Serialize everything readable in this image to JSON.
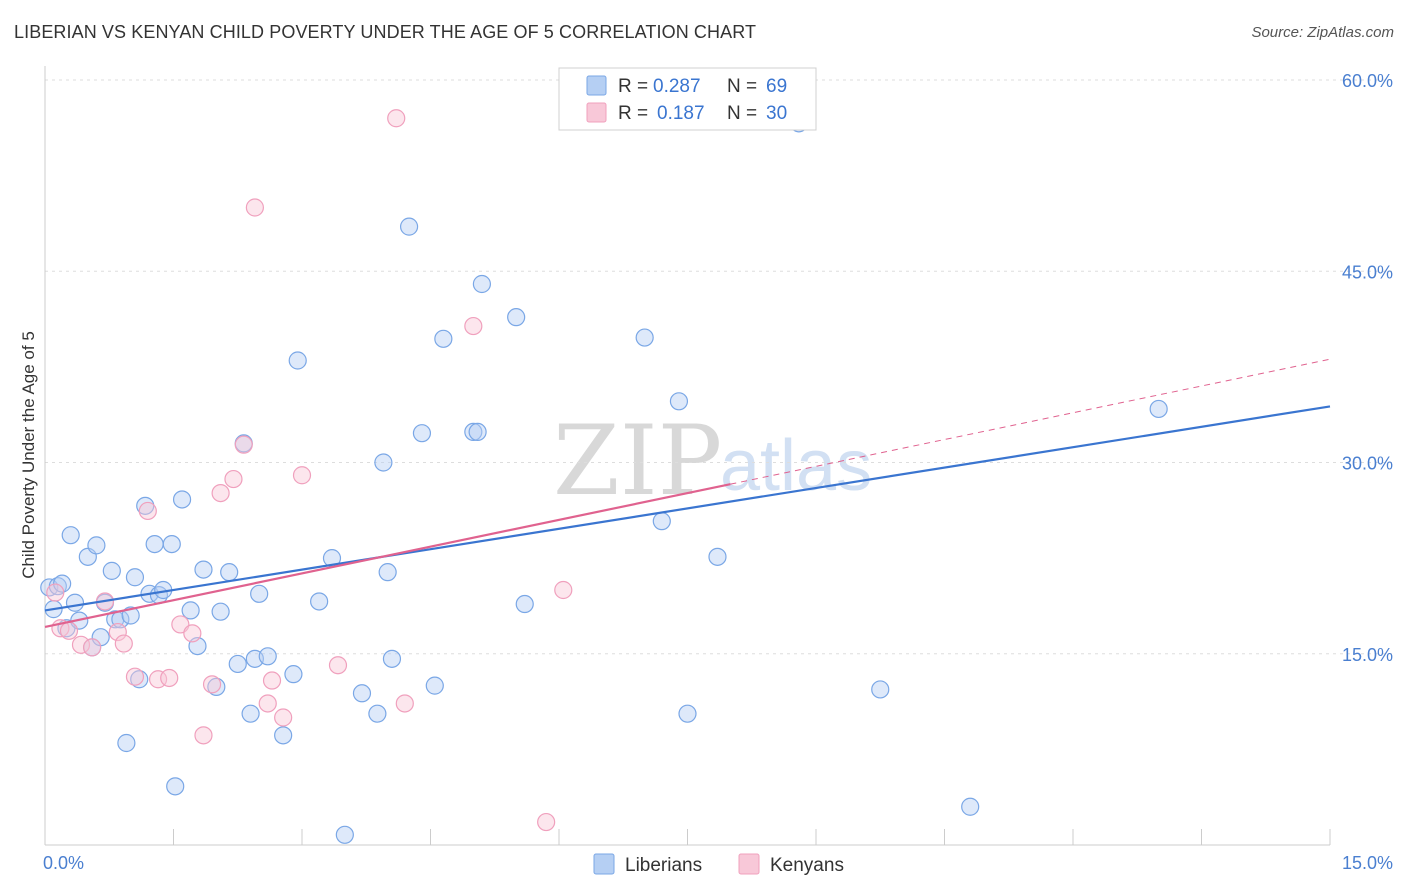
{
  "header": {
    "title": "LIBERIAN VS KENYAN CHILD POVERTY UNDER THE AGE OF 5 CORRELATION CHART",
    "source": "Source: ZipAtlas.com"
  },
  "watermark": {
    "part1": "ZIP",
    "part2": "atlas"
  },
  "legend": {
    "r_label": "R =",
    "n_label": "N =",
    "rows": [
      {
        "name": "Liberians",
        "r": "0.287",
        "n": "69"
      },
      {
        "name": "Kenyans",
        "r": "0.187",
        "n": "30"
      }
    ]
  },
  "chart_data": {
    "type": "scatter",
    "title": "LIBERIAN VS KENYAN CHILD POVERTY UNDER THE AGE OF 5 CORRELATION CHART",
    "xlabel": "",
    "ylabel": "Child Poverty Under the Age of 5",
    "xlim": [
      0,
      15
    ],
    "ylim": [
      0,
      60
    ],
    "x_tick_labels": [
      "0.0%",
      "15.0%"
    ],
    "y_ticks": [
      15,
      30,
      45,
      60
    ],
    "y_tick_labels": [
      "15.0%",
      "30.0%",
      "45.0%",
      "60.0%"
    ],
    "grid": true,
    "legend_position": "top-center",
    "colors": {
      "Liberians": "#7aa7e6",
      "Kenyans": "#f0a0bd",
      "liberians_line": "#3a75d0",
      "kenyans_line": "#e0628f"
    },
    "series": [
      {
        "name": "Liberians",
        "r": 0.287,
        "n": 69,
        "trend": {
          "x": [
            0,
            15
          ],
          "y": [
            18.4,
            34.4
          ],
          "style": "solid"
        },
        "points": [
          [
            0.05,
            20.2
          ],
          [
            0.1,
            18.5
          ],
          [
            0.15,
            20.3
          ],
          [
            0.2,
            20.5
          ],
          [
            0.25,
            17.0
          ],
          [
            0.35,
            19.0
          ],
          [
            0.3,
            24.3
          ],
          [
            0.4,
            17.6
          ],
          [
            0.5,
            22.6
          ],
          [
            0.55,
            15.5
          ],
          [
            0.6,
            23.5
          ],
          [
            0.65,
            16.3
          ],
          [
            0.7,
            19.0
          ],
          [
            0.78,
            21.5
          ],
          [
            0.82,
            17.7
          ],
          [
            0.88,
            17.7
          ],
          [
            0.95,
            8.0
          ],
          [
            1.0,
            18.0
          ],
          [
            1.05,
            21.0
          ],
          [
            1.1,
            13.0
          ],
          [
            1.17,
            26.6
          ],
          [
            1.22,
            19.7
          ],
          [
            1.28,
            23.6
          ],
          [
            1.33,
            19.6
          ],
          [
            1.38,
            20.0
          ],
          [
            1.48,
            23.6
          ],
          [
            1.52,
            4.6
          ],
          [
            1.6,
            27.1
          ],
          [
            1.7,
            18.4
          ],
          [
            1.78,
            15.6
          ],
          [
            1.85,
            21.6
          ],
          [
            2.0,
            12.4
          ],
          [
            2.05,
            18.3
          ],
          [
            2.15,
            21.4
          ],
          [
            2.25,
            14.2
          ],
          [
            2.32,
            31.5
          ],
          [
            2.4,
            10.3
          ],
          [
            2.45,
            14.6
          ],
          [
            2.5,
            19.7
          ],
          [
            2.6,
            14.8
          ],
          [
            2.78,
            8.6
          ],
          [
            2.9,
            13.4
          ],
          [
            2.95,
            38.0
          ],
          [
            3.2,
            19.1
          ],
          [
            3.35,
            22.5
          ],
          [
            3.5,
            0.8
          ],
          [
            3.7,
            11.9
          ],
          [
            3.88,
            10.3
          ],
          [
            3.95,
            30.0
          ],
          [
            4.0,
            21.4
          ],
          [
            4.05,
            14.6
          ],
          [
            4.25,
            48.5
          ],
          [
            4.4,
            32.3
          ],
          [
            4.55,
            12.5
          ],
          [
            4.65,
            39.7
          ],
          [
            5.0,
            32.4
          ],
          [
            5.05,
            32.4
          ],
          [
            5.1,
            44.0
          ],
          [
            5.5,
            41.4
          ],
          [
            5.6,
            18.9
          ],
          [
            7.0,
            39.8
          ],
          [
            7.2,
            25.4
          ],
          [
            7.4,
            34.8
          ],
          [
            7.5,
            10.3
          ],
          [
            7.85,
            22.6
          ],
          [
            8.8,
            56.6
          ],
          [
            9.75,
            12.2
          ],
          [
            10.8,
            3.0
          ],
          [
            13.0,
            34.2
          ]
        ]
      },
      {
        "name": "Kenyans",
        "r": 0.187,
        "n": 30,
        "trend": {
          "x": [
            0,
            8.0,
            15
          ],
          "y": [
            17.1,
            28.3,
            38.1
          ],
          "style": "solid-then-dashed"
        },
        "points": [
          [
            0.12,
            19.8
          ],
          [
            0.18,
            17.0
          ],
          [
            0.28,
            16.8
          ],
          [
            0.42,
            15.7
          ],
          [
            0.55,
            15.5
          ],
          [
            0.7,
            19.1
          ],
          [
            0.85,
            16.7
          ],
          [
            0.92,
            15.8
          ],
          [
            1.05,
            13.2
          ],
          [
            1.2,
            26.2
          ],
          [
            1.32,
            13.0
          ],
          [
            1.45,
            13.1
          ],
          [
            1.58,
            17.3
          ],
          [
            1.72,
            16.6
          ],
          [
            1.85,
            8.6
          ],
          [
            1.95,
            12.6
          ],
          [
            2.05,
            27.6
          ],
          [
            2.2,
            28.7
          ],
          [
            2.32,
            31.4
          ],
          [
            2.45,
            50.0
          ],
          [
            2.6,
            11.1
          ],
          [
            2.65,
            12.9
          ],
          [
            2.78,
            10.0
          ],
          [
            3.0,
            29.0
          ],
          [
            3.42,
            14.1
          ],
          [
            4.1,
            57.0
          ],
          [
            4.2,
            11.1
          ],
          [
            5.0,
            40.7
          ],
          [
            5.85,
            1.8
          ],
          [
            6.05,
            20.0
          ]
        ]
      }
    ]
  }
}
